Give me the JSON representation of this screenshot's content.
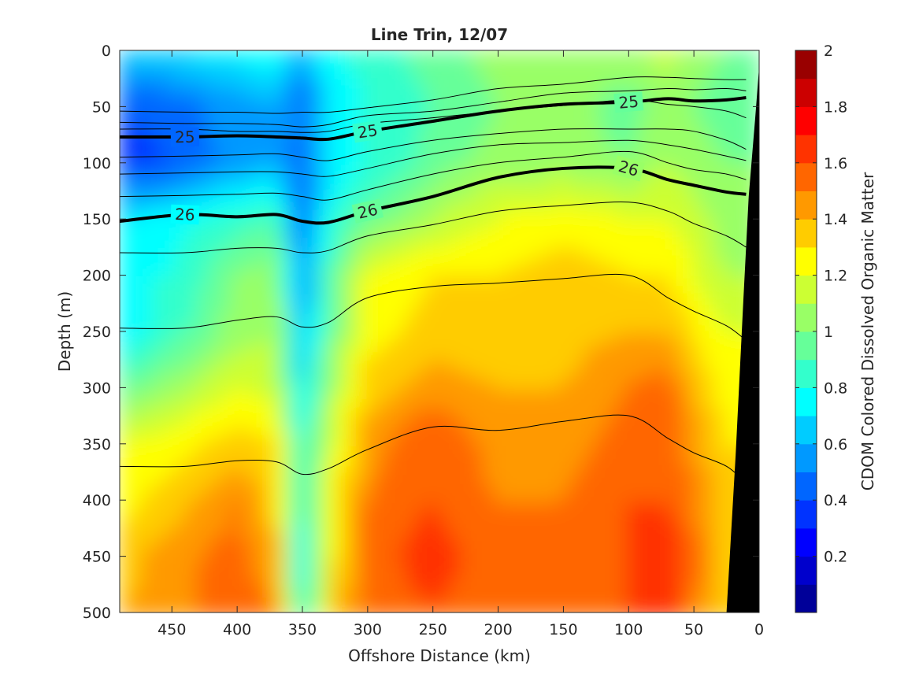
{
  "chart_data": {
    "type": "heatmap",
    "title": "Line Trin, 12/07",
    "xlabel": "Offshore Distance (km)",
    "ylabel": "Depth (m)",
    "xlim": [
      490,
      0
    ],
    "ylim": [
      0,
      500
    ],
    "x_reversed": true,
    "y_reversed": true,
    "x_ticks": [
      450,
      400,
      350,
      300,
      250,
      200,
      150,
      100,
      50,
      0
    ],
    "y_ticks": [
      0,
      50,
      100,
      150,
      200,
      250,
      300,
      350,
      400,
      450,
      500
    ],
    "colorbar": {
      "label": "CDOM Colored Dissolved Organic Matter",
      "range": [
        0,
        2
      ],
      "ticks": [
        0.2,
        0.4,
        0.6,
        0.8,
        1,
        1.2,
        1.4,
        1.6,
        1.8,
        2
      ],
      "levels": 20,
      "colormap": "jet"
    },
    "grid": false,
    "field": {
      "distances_km": [
        490,
        450,
        400,
        370,
        350,
        330,
        300,
        250,
        200,
        150,
        100,
        70,
        50,
        25
      ],
      "depths_m": [
        0,
        50,
        100,
        150,
        200,
        250,
        300,
        350,
        400,
        450,
        500
      ],
      "values": [
        [
          0.65,
          0.7,
          0.75,
          0.8,
          0.55,
          0.78,
          0.85,
          0.95,
          1.05,
          1.1,
          1.05,
          1.15,
          1.05,
          1.0
        ],
        [
          0.4,
          0.45,
          0.55,
          0.6,
          0.45,
          0.7,
          0.8,
          0.9,
          1.0,
          1.05,
          0.95,
          1.05,
          1.0,
          0.95
        ],
        [
          0.35,
          0.4,
          0.55,
          0.6,
          0.4,
          0.7,
          0.8,
          0.95,
          1.05,
          1.05,
          1.0,
          1.1,
          1.05,
          1.0
        ],
        [
          0.7,
          0.75,
          0.85,
          0.9,
          0.45,
          0.8,
          0.95,
          1.1,
          1.2,
          1.25,
          1.2,
          1.2,
          1.15,
          1.05
        ],
        [
          0.8,
          0.8,
          1.0,
          1.05,
          0.5,
          0.9,
          1.2,
          1.3,
          1.3,
          1.35,
          1.3,
          1.3,
          1.2,
          1.1
        ],
        [
          0.7,
          0.85,
          1.05,
          1.1,
          0.6,
          0.95,
          1.25,
          1.35,
          1.3,
          1.35,
          1.4,
          1.4,
          1.3,
          1.2
        ],
        [
          0.95,
          1.05,
          1.2,
          1.15,
          0.7,
          1.05,
          1.35,
          1.45,
          1.4,
          1.4,
          1.5,
          1.55,
          1.4,
          1.25
        ],
        [
          1.2,
          1.25,
          1.35,
          1.3,
          0.8,
          1.15,
          1.45,
          1.6,
          1.45,
          1.45,
          1.55,
          1.6,
          1.45,
          1.3
        ],
        [
          1.25,
          1.35,
          1.5,
          1.35,
          0.8,
          1.2,
          1.5,
          1.6,
          1.5,
          1.5,
          1.6,
          1.6,
          1.5,
          1.35
        ],
        [
          1.35,
          1.45,
          1.55,
          1.4,
          0.75,
          1.25,
          1.55,
          1.65,
          1.55,
          1.55,
          1.6,
          1.7,
          1.55,
          1.35
        ],
        [
          1.4,
          1.45,
          1.6,
          1.5,
          0.8,
          1.3,
          1.55,
          1.6,
          1.55,
          1.55,
          1.6,
          1.65,
          1.5,
          1.35
        ]
      ]
    },
    "isopycnals": {
      "distances_km": [
        490,
        440,
        400,
        370,
        350,
        330,
        300,
        250,
        200,
        150,
        100,
        70,
        50,
        25,
        10
      ],
      "series": [
        {
          "name": "25",
          "emphasis": "bold",
          "depths_m": [
            77,
            77,
            76,
            77,
            78,
            79,
            72,
            63,
            54,
            48,
            46,
            43,
            45,
            44,
            42
          ]
        },
        {
          "name": "26",
          "emphasis": "bold",
          "depths_m": [
            152,
            146,
            148,
            146,
            152,
            153,
            143,
            130,
            113,
            105,
            105,
            115,
            120,
            126,
            128
          ]
        },
        {
          "depths_m": [
            54,
            55,
            55,
            56,
            55,
            55,
            51,
            44,
            34,
            30,
            24,
            24,
            25,
            26,
            26
          ]
        },
        {
          "depths_m": [
            64,
            65,
            65,
            66,
            68,
            66,
            58,
            54,
            46,
            38,
            36,
            34,
            35,
            34,
            36
          ]
        },
        {
          "depths_m": [
            70,
            70,
            72,
            72,
            73,
            72,
            65,
            60,
            54,
            49,
            44,
            48,
            50,
            54,
            60
          ]
        },
        {
          "depths_m": [
            95,
            94,
            93,
            92,
            95,
            98,
            90,
            80,
            74,
            70,
            70,
            70,
            72,
            80,
            88
          ]
        },
        {
          "depths_m": [
            110,
            109,
            108,
            108,
            110,
            112,
            105,
            92,
            84,
            82,
            80,
            84,
            88,
            94,
            98
          ]
        },
        {
          "depths_m": [
            130,
            129,
            128,
            127,
            130,
            133,
            124,
            110,
            100,
            95,
            90,
            100,
            106,
            110,
            115
          ]
        },
        {
          "depths_m": [
            180,
            180,
            176,
            176,
            180,
            178,
            165,
            155,
            143,
            138,
            135,
            143,
            154,
            165,
            175
          ]
        },
        {
          "depths_m": [
            247,
            247,
            240,
            237,
            246,
            242,
            220,
            210,
            207,
            203,
            200,
            220,
            232,
            245,
            258
          ]
        },
        {
          "depths_m": [
            370,
            370,
            365,
            366,
            377,
            372,
            355,
            335,
            338,
            330,
            325,
            345,
            358,
            370,
            385
          ]
        }
      ]
    },
    "bathymetry": {
      "distances_km": [
        0,
        3,
        8,
        12,
        18,
        25
      ],
      "depths_m": [
        15,
        60,
        130,
        220,
        360,
        500
      ]
    }
  }
}
